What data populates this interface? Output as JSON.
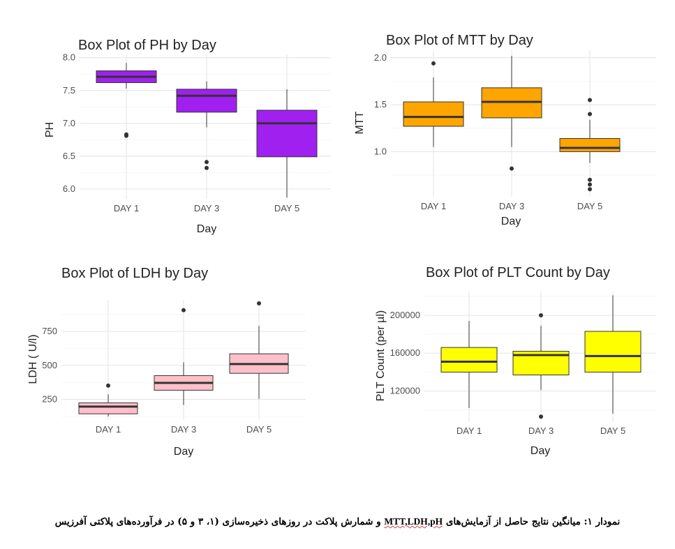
{
  "caption": {
    "lead": "نمودار ۱: میانگین نتایج حاصل از آزمایش‌های",
    "latin": "MTT,LDH,pH",
    "tail": "و شمارش پلاکت در روزهای ذخیره‌سازی (۱، ۳ و ۵) در فرآورده‌های پلاکتی آفرزیس"
  },
  "chart_data": [
    {
      "type": "box",
      "title": "Box Plot of PH by  Day",
      "xlabel": "Day",
      "ylabel": "PH",
      "categories": [
        "DAY 1",
        "DAY 3",
        "DAY 5"
      ],
      "ylim": [
        5.85,
        8.05
      ],
      "yticks": [
        6.0,
        6.5,
        7.0,
        7.5,
        8.0
      ],
      "ytick_labels": [
        "6.0",
        "6.5",
        "7.0",
        "7.5",
        "8.0"
      ],
      "fill": "#a020f0",
      "boxes": [
        {
          "whisker_low": 7.53,
          "q1": 7.62,
          "median": 7.71,
          "q3": 7.8,
          "whisker_high": 7.92,
          "outliers": [
            6.81,
            6.83
          ]
        },
        {
          "whisker_low": 6.94,
          "q1": 7.17,
          "median": 7.42,
          "q3": 7.52,
          "whisker_high": 7.64,
          "outliers": [
            6.32,
            6.41
          ]
        },
        {
          "whisker_low": 5.87,
          "q1": 6.49,
          "median": 7.0,
          "q3": 7.2,
          "whisker_high": 7.52,
          "outliers": []
        }
      ]
    },
    {
      "type": "box",
      "title": "Box Plot of MTT by  Day",
      "xlabel": "Day",
      "ylabel": "MTT",
      "categories": [
        "DAY 1",
        "DAY 3",
        "DAY 5"
      ],
      "ylim": [
        0.52,
        2.08
      ],
      "yticks": [
        1.0,
        1.5,
        2.0
      ],
      "ytick_labels": [
        "1.0",
        "1.5",
        "2.0"
      ],
      "fill": "#ffa500",
      "boxes": [
        {
          "whisker_low": 1.05,
          "q1": 1.27,
          "median": 1.37,
          "q3": 1.53,
          "whisker_high": 1.79,
          "outliers": [
            1.94
          ]
        },
        {
          "whisker_low": 1.05,
          "q1": 1.36,
          "median": 1.53,
          "q3": 1.68,
          "whisker_high": 2.02,
          "outliers": [
            0.82
          ]
        },
        {
          "whisker_low": 0.88,
          "q1": 1.0,
          "median": 1.04,
          "q3": 1.14,
          "whisker_high": 1.34,
          "outliers": [
            0.6,
            0.65,
            0.7,
            1.4,
            1.55
          ]
        }
      ]
    },
    {
      "type": "box",
      "title": "Box Plot of LDH by  Day",
      "xlabel": "Day",
      "ylabel": "LDH ( U/l)",
      "categories": [
        "DAY 1",
        "DAY 3",
        "DAY 5"
      ],
      "ylim": [
        100,
        980
      ],
      "yticks": [
        250,
        500,
        750
      ],
      "ytick_labels": [
        "250",
        "500",
        "750"
      ],
      "fill": "#ffc0cb",
      "boxes": [
        {
          "whisker_low": 125,
          "q1": 145,
          "median": 198,
          "q3": 225,
          "whisker_high": 288,
          "outliers": [
            352
          ]
        },
        {
          "whisker_low": 210,
          "q1": 318,
          "median": 372,
          "q3": 425,
          "whisker_high": 522,
          "outliers": [
            905
          ]
        },
        {
          "whisker_low": 255,
          "q1": 442,
          "median": 510,
          "q3": 585,
          "whisker_high": 790,
          "outliers": [
            955
          ]
        }
      ]
    },
    {
      "type": "box",
      "title": "Box Plot of PLT Count by Day",
      "xlabel": "Day",
      "ylabel": "PLT Count (per µl)",
      "categories": [
        "DAY 1",
        "DAY 3",
        "DAY 5"
      ],
      "ylim": [
        88000,
        225000
      ],
      "yticks": [
        120000,
        160000,
        200000
      ],
      "ytick_labels": [
        "120000",
        "160000",
        "200000"
      ],
      "fill": "#ffff00",
      "boxes": [
        {
          "whisker_low": 102000,
          "q1": 140000,
          "median": 151000,
          "q3": 166000,
          "whisker_high": 194000,
          "outliers": []
        },
        {
          "whisker_low": 121000,
          "q1": 137000,
          "median": 158000,
          "q3": 162000,
          "whisker_high": 189000,
          "outliers": [
            93000,
            200000
          ]
        },
        {
          "whisker_low": 96000,
          "q1": 140000,
          "median": 157000,
          "q3": 183000,
          "whisker_high": 221000,
          "outliers": []
        }
      ]
    }
  ]
}
